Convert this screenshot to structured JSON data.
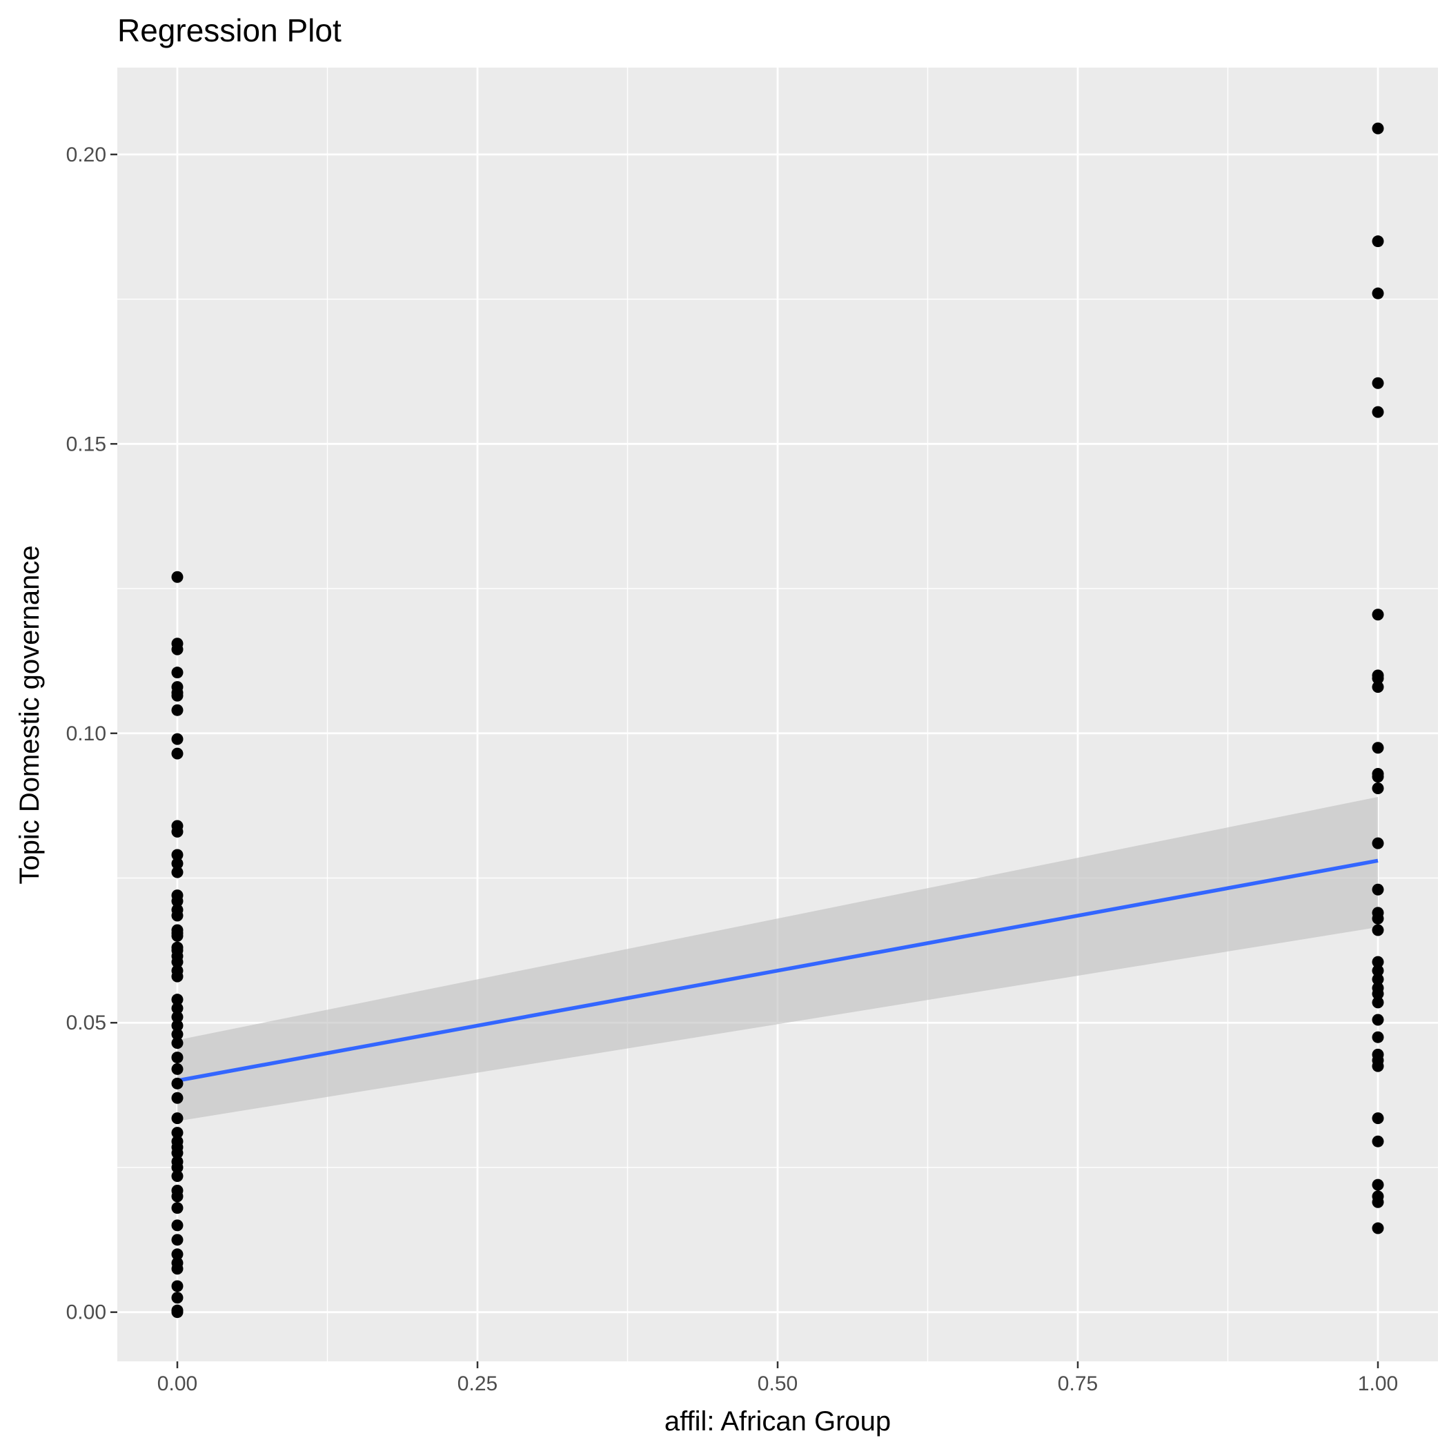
{
  "chart_data": {
    "type": "scatter",
    "title": "Regression Plot",
    "xlabel": "affil: African Group",
    "ylabel": "Topic Domestic governance",
    "xlim": [
      -0.05,
      1.05
    ],
    "ylim": [
      -0.0085,
      0.215
    ],
    "x_ticks": [
      0,
      0.25,
      0.5,
      0.75,
      1
    ],
    "x_tick_labels": [
      "0.00",
      "0.25",
      "0.50",
      "0.75",
      "1.00"
    ],
    "y_ticks": [
      0,
      0.05,
      0.1,
      0.15,
      0.2
    ],
    "y_tick_labels": [
      "0.00",
      "0.05",
      "0.10",
      "0.15",
      "0.20"
    ],
    "grid": true,
    "legend": "none",
    "colors": {
      "panel": "#ebebeb",
      "grid": "#ffffff",
      "points": "#000000",
      "line": "#3366ff",
      "ribbon": "#bebebe"
    },
    "series": [
      {
        "type": "scatter",
        "points": [
          [
            0,
            0.127
          ],
          [
            0,
            0.1155
          ],
          [
            0,
            0.1145
          ],
          [
            0,
            0.1105
          ],
          [
            0,
            0.108
          ],
          [
            0,
            0.107
          ],
          [
            0,
            0.1065
          ],
          [
            0,
            0.104
          ],
          [
            0,
            0.099
          ],
          [
            0,
            0.0965
          ],
          [
            0,
            0.084
          ],
          [
            0,
            0.083
          ],
          [
            0,
            0.079
          ],
          [
            0,
            0.0775
          ],
          [
            0,
            0.076
          ],
          [
            0,
            0.072
          ],
          [
            0,
            0.071
          ],
          [
            0,
            0.0695
          ],
          [
            0,
            0.0685
          ],
          [
            0,
            0.066
          ],
          [
            0,
            0.0655
          ],
          [
            0,
            0.065
          ],
          [
            0,
            0.063
          ],
          [
            0,
            0.0625
          ],
          [
            0,
            0.0615
          ],
          [
            0,
            0.0605
          ],
          [
            0,
            0.059
          ],
          [
            0,
            0.058
          ],
          [
            0,
            0.054
          ],
          [
            0,
            0.0525
          ],
          [
            0,
            0.051
          ],
          [
            0,
            0.0495
          ],
          [
            0,
            0.048
          ],
          [
            0,
            0.0465
          ],
          [
            0,
            0.044
          ],
          [
            0,
            0.042
          ],
          [
            0,
            0.0395
          ],
          [
            0,
            0.037
          ],
          [
            0,
            0.0335
          ],
          [
            0,
            0.031
          ],
          [
            0,
            0.0295
          ],
          [
            0,
            0.0285
          ],
          [
            0,
            0.0275
          ],
          [
            0,
            0.026
          ],
          [
            0,
            0.025
          ],
          [
            0,
            0.0235
          ],
          [
            0,
            0.021
          ],
          [
            0,
            0.02
          ],
          [
            0,
            0.018
          ],
          [
            0,
            0.015
          ],
          [
            0,
            0.0125
          ],
          [
            0,
            0.01
          ],
          [
            0,
            0.0085
          ],
          [
            0,
            0.0075
          ],
          [
            0,
            0.0045
          ],
          [
            0,
            0.0025
          ],
          [
            0,
            0.0003
          ],
          [
            0,
            0
          ],
          [
            1,
            0.2045
          ],
          [
            1,
            0.185
          ],
          [
            1,
            0.176
          ],
          [
            1,
            0.1605
          ],
          [
            1,
            0.1555
          ],
          [
            1,
            0.1205
          ],
          [
            1,
            0.11
          ],
          [
            1,
            0.1095
          ],
          [
            1,
            0.108
          ],
          [
            1,
            0.0975
          ],
          [
            1,
            0.093
          ],
          [
            1,
            0.0925
          ],
          [
            1,
            0.0905
          ],
          [
            1,
            0.081
          ],
          [
            1,
            0.073
          ],
          [
            1,
            0.069
          ],
          [
            1,
            0.068
          ],
          [
            1,
            0.066
          ],
          [
            1,
            0.0605
          ],
          [
            1,
            0.059
          ],
          [
            1,
            0.0575
          ],
          [
            1,
            0.056
          ],
          [
            1,
            0.055
          ],
          [
            1,
            0.0535
          ],
          [
            1,
            0.0505
          ],
          [
            1,
            0.0475
          ],
          [
            1,
            0.0445
          ],
          [
            1,
            0.0435
          ],
          [
            1,
            0.0425
          ],
          [
            1,
            0.0335
          ],
          [
            1,
            0.0295
          ],
          [
            1,
            0.022
          ],
          [
            1,
            0.02
          ],
          [
            1,
            0.019
          ],
          [
            1,
            0.0145
          ]
        ]
      },
      {
        "type": "line",
        "x": [
          0,
          1
        ],
        "y": [
          0.04,
          0.078
        ]
      },
      {
        "type": "area",
        "x": [
          0,
          1
        ],
        "upper": [
          0.047,
          0.089
        ],
        "lower": [
          0.033,
          0.0665
        ]
      }
    ]
  }
}
